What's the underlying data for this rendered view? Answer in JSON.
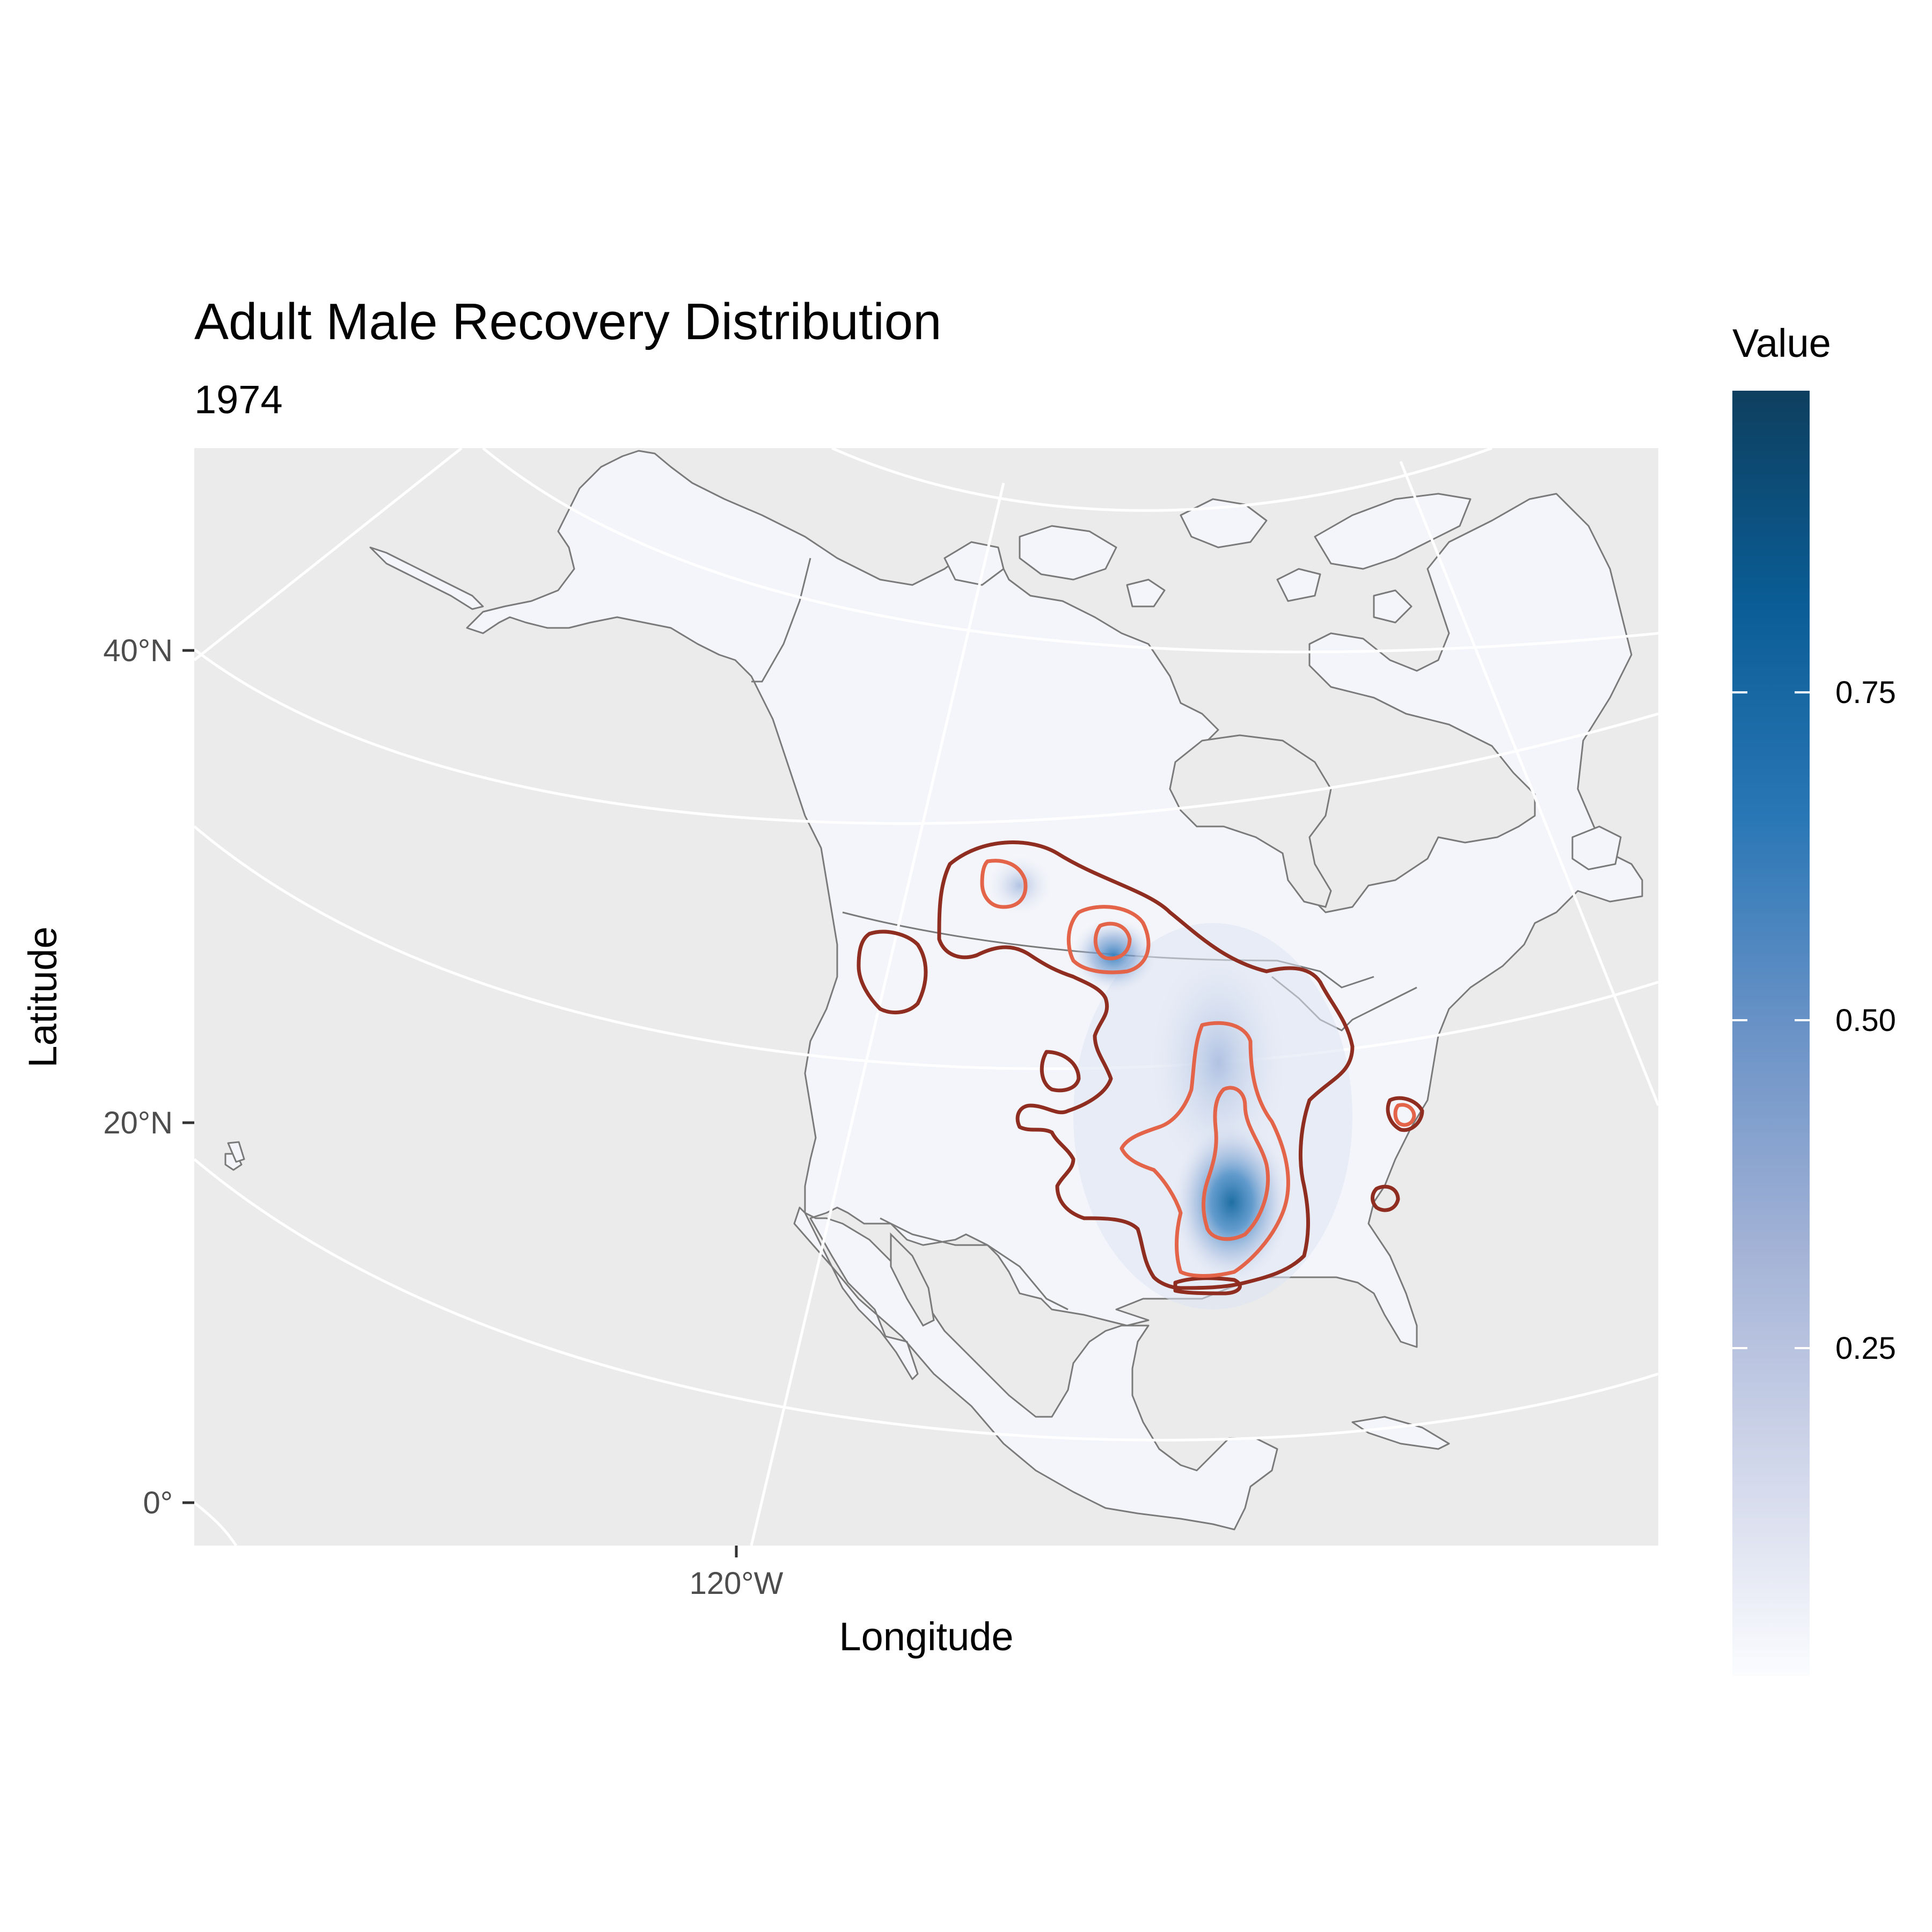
{
  "title": "Adult Male Recovery Distribution",
  "subtitle": "1974",
  "x_axis": {
    "title": "Longitude",
    "ticks": [
      "120°W"
    ]
  },
  "y_axis": {
    "title": "Latitude",
    "ticks": [
      "40°N",
      "20°N",
      "0°"
    ]
  },
  "legend": {
    "title": "Value",
    "ticks": [
      "0.75",
      "0.50",
      "0.25"
    ],
    "tick_values": [
      0.75,
      0.5,
      0.25
    ],
    "range": [
      0,
      0.98
    ],
    "colors": [
      "#fbfcfe",
      "#d0d6ea",
      "#a3b2d6",
      "#6b93c7",
      "#2a77b6",
      "#0a5d96",
      "#0e3f5f"
    ]
  },
  "colors": {
    "panel_background": "#ebebeb",
    "land": "#f4f5fa",
    "coastline": "#7a7a7a",
    "graticule": "#ffffff",
    "contour_outer": "#8f2d20",
    "contour_inner": "#e4644a"
  },
  "map_data": {
    "projection": "conic",
    "density_peaks": [
      {
        "lon": -90,
        "lat": 34,
        "value": 0.98
      },
      {
        "lon": -101,
        "lat": 48,
        "value": 0.75
      },
      {
        "lon": -91,
        "lat": 38,
        "value": 0.42
      }
    ],
    "contour_levels": [
      "outer",
      "inner"
    ]
  }
}
